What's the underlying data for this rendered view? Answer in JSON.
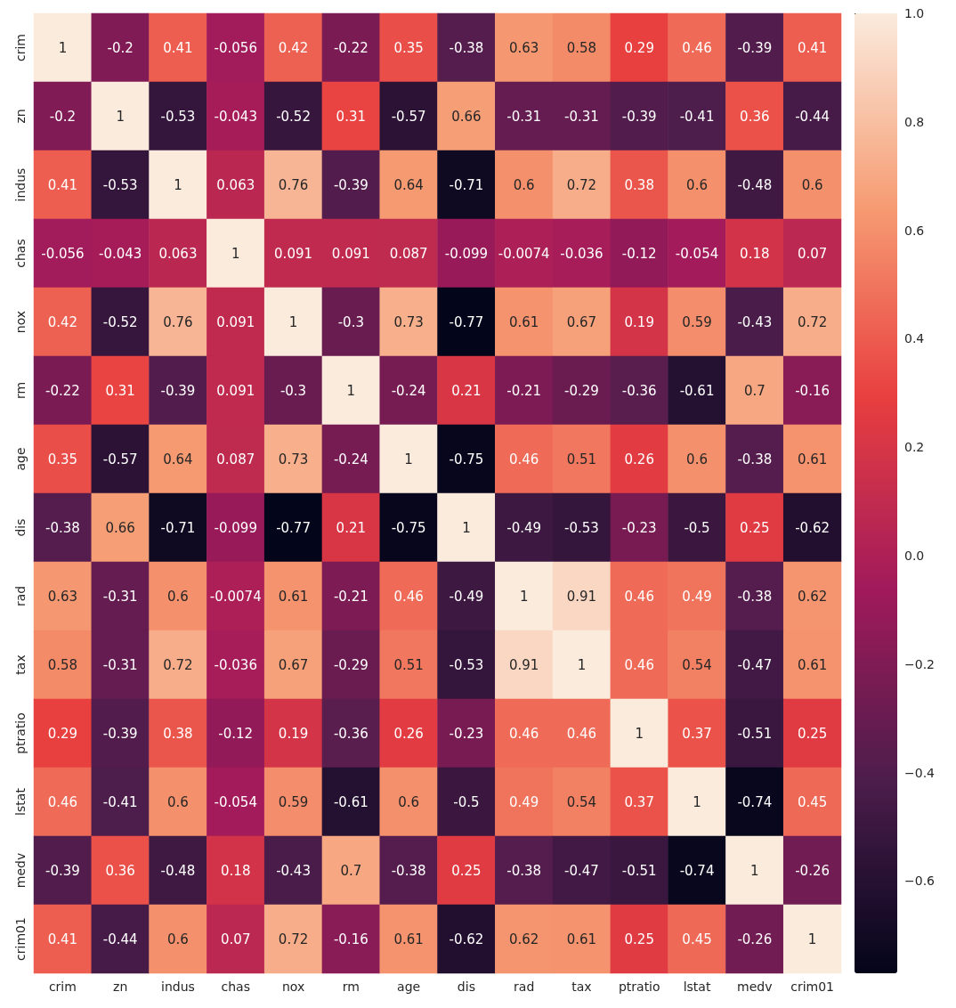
{
  "chart_data": {
    "type": "heatmap",
    "categories": [
      "crim",
      "zn",
      "indus",
      "chas",
      "nox",
      "rm",
      "age",
      "dis",
      "rad",
      "tax",
      "ptratio",
      "lstat",
      "medv",
      "crim01"
    ],
    "y_categories": [
      "crim",
      "zn",
      "indus",
      "chas",
      "nox",
      "rm",
      "age",
      "dis",
      "rad",
      "tax",
      "ptratio",
      "lstat",
      "medv",
      "crim01"
    ],
    "cells": [
      [
        1,
        -0.2,
        0.41,
        -0.056,
        0.42,
        -0.22,
        0.35,
        -0.38,
        0.63,
        0.58,
        0.29,
        0.46,
        -0.39,
        0.41
      ],
      [
        -0.2,
        1,
        -0.53,
        -0.043,
        -0.52,
        0.31,
        -0.57,
        0.66,
        -0.31,
        -0.31,
        -0.39,
        -0.41,
        0.36,
        -0.44
      ],
      [
        0.41,
        -0.53,
        1,
        0.063,
        0.76,
        -0.39,
        0.64,
        -0.71,
        0.6,
        0.72,
        0.38,
        0.6,
        -0.48,
        0.6
      ],
      [
        -0.056,
        -0.043,
        0.063,
        1,
        0.091,
        0.091,
        0.087,
        -0.099,
        -0.0074,
        -0.036,
        -0.12,
        -0.054,
        0.18,
        0.07
      ],
      [
        0.42,
        -0.52,
        0.76,
        0.091,
        1,
        -0.3,
        0.73,
        -0.77,
        0.61,
        0.67,
        0.19,
        0.59,
        -0.43,
        0.72
      ],
      [
        -0.22,
        0.31,
        -0.39,
        0.091,
        -0.3,
        1,
        -0.24,
        0.21,
        -0.21,
        -0.29,
        -0.36,
        -0.61,
        0.7,
        -0.16
      ],
      [
        0.35,
        -0.57,
        0.64,
        0.087,
        0.73,
        -0.24,
        1,
        -0.75,
        0.46,
        0.51,
        0.26,
        0.6,
        -0.38,
        0.61
      ],
      [
        -0.38,
        0.66,
        -0.71,
        -0.099,
        -0.77,
        0.21,
        -0.75,
        1,
        -0.49,
        -0.53,
        -0.23,
        -0.5,
        0.25,
        -0.62
      ],
      [
        0.63,
        -0.31,
        0.6,
        -0.0074,
        0.61,
        -0.21,
        0.46,
        -0.49,
        1,
        0.91,
        0.46,
        0.49,
        -0.38,
        0.62
      ],
      [
        0.58,
        -0.31,
        0.72,
        -0.036,
        0.67,
        -0.29,
        0.51,
        -0.53,
        0.91,
        1,
        0.46,
        0.54,
        -0.47,
        0.61
      ],
      [
        0.29,
        -0.39,
        0.38,
        -0.12,
        0.19,
        -0.36,
        0.26,
        -0.23,
        0.46,
        0.46,
        1,
        0.37,
        -0.51,
        0.25
      ],
      [
        0.46,
        -0.41,
        0.6,
        -0.054,
        0.59,
        -0.61,
        0.6,
        -0.5,
        0.49,
        0.54,
        0.37,
        1,
        -0.74,
        0.45
      ],
      [
        -0.39,
        0.36,
        -0.48,
        0.18,
        -0.43,
        0.7,
        -0.38,
        0.25,
        -0.38,
        -0.47,
        -0.51,
        -0.74,
        1,
        -0.26
      ],
      [
        0.41,
        -0.44,
        0.6,
        0.07,
        0.72,
        -0.16,
        0.61,
        -0.62,
        0.62,
        0.61,
        0.25,
        0.45,
        -0.26,
        1
      ]
    ],
    "clim": [
      -0.77,
      1
    ],
    "cticks": [
      {
        "value": -0.6,
        "label": "−0.6"
      },
      {
        "value": -0.4,
        "label": "−0.4"
      },
      {
        "value": -0.2,
        "label": "−0.2"
      },
      {
        "value": 0,
        "label": "0.0"
      },
      {
        "value": 0.2,
        "label": "0.2"
      },
      {
        "value": 0.4,
        "label": "0.4"
      },
      {
        "value": 0.6,
        "label": "0.6"
      },
      {
        "value": 0.8,
        "label": "0.8"
      },
      {
        "value": 1,
        "label": "1.0"
      }
    ],
    "data_labels": true
  }
}
